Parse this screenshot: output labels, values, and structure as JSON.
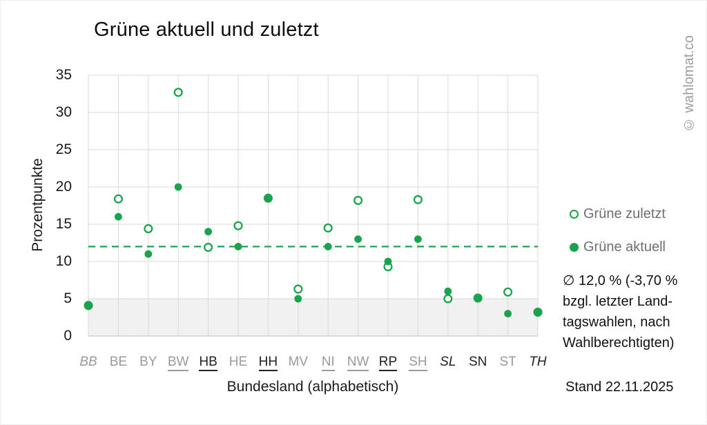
{
  "title": "Grüne aktuell und zuletzt",
  "watermark": "© wahlomat.co",
  "stand": "Stand 22.11.2025",
  "legend": {
    "items": [
      {
        "label": "Grüne zuletzt",
        "marker": "open-circle"
      },
      {
        "label": "Grüne aktuell",
        "marker": "filled-circle"
      }
    ]
  },
  "annotation": {
    "lines": [
      "∅ 12,0 % (-3,70 %",
      "bzgl. letzter Land-",
      "tagswahlen, nach",
      "Wahlberechtigten)"
    ]
  },
  "colors": {
    "series_green": "#1aa34d",
    "gridline": "#d9d9d9",
    "axis_line": "#c9c9c9",
    "band_fill": "#f1f1f1",
    "label_gray": "#9a9a9a",
    "label_black": "#212121",
    "legend_text": "#6f6f6f",
    "watermark_gray": "#9e9e9e"
  },
  "chart_data": {
    "type": "scatter",
    "title": "Grüne aktuell und zuletzt",
    "xlabel": "Bundesland (alphabetisch)",
    "ylabel": "Prozentpunkte",
    "ylim": [
      0,
      35
    ],
    "ytick_step": 5,
    "grid": true,
    "legend_position": "right",
    "categories": [
      "BB",
      "BE",
      "BY",
      "BW",
      "HB",
      "HE",
      "HH",
      "MV",
      "NI",
      "NW",
      "RP",
      "SH",
      "SL",
      "SN",
      "ST",
      "TH"
    ],
    "category_styles": [
      "gray-italic",
      "gray",
      "gray",
      "gray-underline",
      "black-underline",
      "gray",
      "black-underline",
      "gray",
      "gray-underline",
      "gray-underline",
      "black-underline",
      "gray-underline",
      "black-italic",
      "black",
      "gray",
      "black-italic"
    ],
    "series": [
      {
        "name": "Grüne zuletzt",
        "marker": "open-circle",
        "values": [
          4.1,
          18.4,
          14.4,
          32.7,
          11.9,
          14.8,
          18.5,
          6.3,
          14.5,
          18.2,
          9.3,
          18.3,
          5.0,
          5.1,
          5.9,
          3.2
        ]
      },
      {
        "name": "Grüne aktuell",
        "marker": "filled-circle",
        "values": [
          4.0,
          16.0,
          11.0,
          20.0,
          14.0,
          12.0,
          18.5,
          5.0,
          12.0,
          13.0,
          10.0,
          13.0,
          6.0,
          5.0,
          3.0,
          3.1
        ]
      }
    ],
    "mean_line": {
      "value": 12.0,
      "label": "∅ 12,0 %",
      "style": "dashed"
    },
    "threshold_band": {
      "from": 0,
      "to": 5
    }
  }
}
